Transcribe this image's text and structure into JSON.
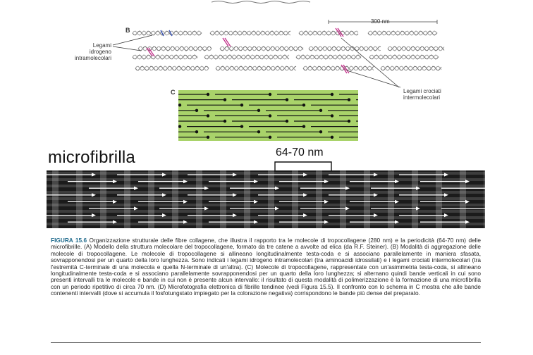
{
  "panel_b": {
    "letter": "B",
    "scale_label": "300 nm",
    "label_left": [
      "Legami",
      "idrogeno",
      "intramolecolari"
    ],
    "label_right": [
      "Legami crociati",
      "intermolecolari"
    ]
  },
  "panel_c": {
    "letter": "C"
  },
  "micrograph": {
    "title": "microfibrilla",
    "period_label": "64-70 nm"
  },
  "caption": {
    "figure_label": "FIGURA 15.6",
    "text": "Organizzazione strutturale delle fibre collagene, che illustra il rapporto tra le molecole di tropocollagene (280 nm) e la periodicità (64-70 nm) delle microfibrille. (A) Modello della struttura molecolare del tropocollagene, formato da tre catene a avvolte ad elica (da R.F. Steiner). (B) Modalità di aggregazione delle molecole di tropocollagene. Le molecole di tropocollagene si allineano longitudinalmente testa-coda e si associano parallelamente in maniera sfasata, sovrapponendosi per un quarto della loro lunghezza. Sono indicati i legami idrogeno intramolecolari (tra aminoacidi idrossilati) e i legami crociati intermolecolari (tra l'estremità C-terminale di una molecola e quella N-terminale di un'altra). (C) Molecole di tropocollagene, rappresentate con un'asimmetria testa-coda, si allineano longitudinalmente testa-coda e si associano parallelamente sovrapponendosi per un quarto della loro lunghezza; si alternano quindi bande verticali in cui sono presenti intervalli tra le molecole e bande in cui non è presente alcun intervallo: il risultato di questa modalità di polimerizzazione è la formazione di una microfibrilla con un periodo ripetitivo di circa 70 nm. (D) Microfotografia elettronica di fibrille tendinee (vedi Figura 15.5). Il confronto con lo schema in C mostra che alle bande contenenti intervalli (dove si accumula il fosfotungstato impiegato per la colorazione negativa) corrispondono le bande più dense del preparato."
  },
  "colors": {
    "panel_c_fill": "#a9d36a",
    "crosslink": "#c2308a",
    "hbond": "#3b56b5",
    "caption_label": "#1f6a8c"
  }
}
